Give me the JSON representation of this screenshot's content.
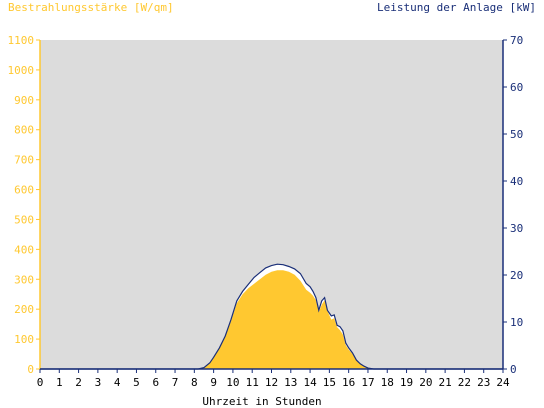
{
  "chart_data": {
    "type": "area",
    "left_axis_title": "Bestrahlungsstärke [W/qm]",
    "right_axis_title": "Leistung der Anlage [kW]",
    "xlabel": "Uhrzeit in Stunden",
    "x_ticks": [
      "0",
      "1",
      "2",
      "3",
      "4",
      "5",
      "6",
      "7",
      "8",
      "9",
      "10",
      "11",
      "12",
      "13",
      "14",
      "15",
      "16",
      "17",
      "18",
      "19",
      "20",
      "21",
      "22",
      "23",
      "24"
    ],
    "left_ticks": [
      "0",
      "100",
      "200",
      "300",
      "400",
      "500",
      "600",
      "700",
      "800",
      "900",
      "1000",
      "1100"
    ],
    "right_ticks": [
      "0",
      "10",
      "20",
      "30",
      "40",
      "50",
      "60",
      "70"
    ],
    "xlim": [
      0,
      24
    ],
    "ylim_left": [
      0,
      1100
    ],
    "ylim_right": [
      0,
      70
    ],
    "grid": false,
    "colors": {
      "plot_bg": "#dcdcdc",
      "irradiance_fill": "#ffc830",
      "irradiance_axis": "#ffc830",
      "power_line": "#1a2f78",
      "power_axis": "#1a2f78",
      "power_fill": "#ffffff"
    },
    "series": [
      {
        "name": "Bestrahlungsstärke [W/qm]",
        "axis": "left",
        "x": [
          8.2,
          8.5,
          8.8,
          9.0,
          9.3,
          9.6,
          9.9,
          10.2,
          10.5,
          10.8,
          11.1,
          11.4,
          11.7,
          12.0,
          12.3,
          12.6,
          12.9,
          13.2,
          13.5,
          13.8,
          14.0,
          14.15,
          14.3,
          14.45,
          14.6,
          14.75,
          14.9,
          15.1,
          15.25,
          15.4,
          15.55,
          15.7,
          15.85,
          16.0,
          16.2,
          16.4,
          16.6,
          16.8,
          17.0,
          17.3
        ],
        "y": [
          0,
          5,
          20,
          40,
          70,
          110,
          160,
          220,
          250,
          270,
          285,
          300,
          315,
          325,
          330,
          330,
          325,
          315,
          295,
          265,
          255,
          245,
          230,
          190,
          215,
          230,
          195,
          165,
          170,
          140,
          130,
          115,
          80,
          65,
          50,
          30,
          18,
          10,
          5,
          0
        ]
      },
      {
        "name": "Leistung der Anlage [kW]",
        "axis": "right",
        "x": [
          8.2,
          8.5,
          8.8,
          9.0,
          9.3,
          9.6,
          9.9,
          10.2,
          10.5,
          10.8,
          11.1,
          11.4,
          11.7,
          12.0,
          12.3,
          12.6,
          12.9,
          13.2,
          13.5,
          13.8,
          14.0,
          14.15,
          14.3,
          14.45,
          14.6,
          14.75,
          14.9,
          15.1,
          15.25,
          15.4,
          15.55,
          15.7,
          15.85,
          16.0,
          16.2,
          16.4,
          16.6,
          16.8,
          17.0,
          17.3
        ],
        "y": [
          0,
          0.3,
          1.3,
          2.5,
          4.5,
          7.0,
          10.5,
          14.5,
          16.5,
          18.0,
          19.5,
          20.5,
          21.5,
          22.0,
          22.3,
          22.2,
          21.8,
          21.3,
          20.3,
          18.2,
          17.5,
          16.5,
          15.2,
          12.5,
          14.5,
          15.2,
          12.5,
          11.3,
          11.5,
          9.3,
          9.0,
          8.1,
          5.5,
          4.5,
          3.4,
          1.9,
          1.1,
          0.6,
          0.2,
          0
        ]
      }
    ]
  }
}
